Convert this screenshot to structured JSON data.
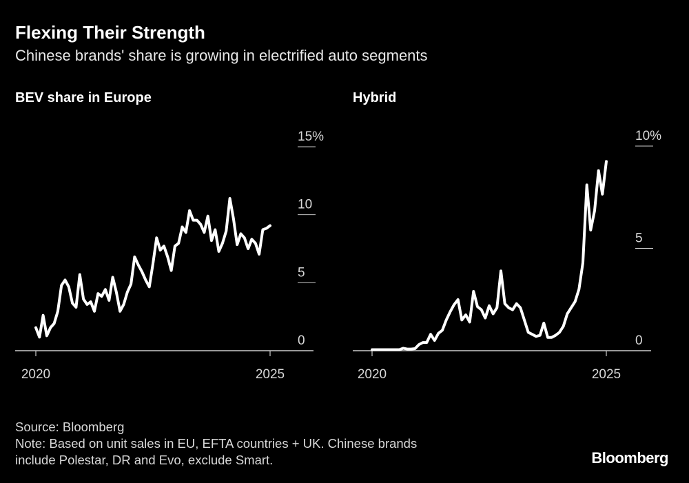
{
  "title": "Flexing Their Strength",
  "subtitle": "Chinese brands' share is growing in electrified auto segments",
  "footer": {
    "source": "Source: Bloomberg",
    "note_line1": "Note: Based on unit sales in EU, EFTA countries + UK. Chinese brands",
    "note_line2": "include Polestar, DR and Evo, exclude Smart."
  },
  "logo": "Bloomberg",
  "colors": {
    "background": "#000000",
    "line": "#ffffff",
    "axis": "#cccccc"
  },
  "chart_data": [
    {
      "type": "line",
      "title": "BEV share in Europe",
      "x_ticks": [
        "2020",
        "2025"
      ],
      "x_range": [
        2020,
        2025
      ],
      "y_ticks": [
        "0",
        "5",
        "10",
        "15%"
      ],
      "y_tick_values": [
        0,
        5,
        10,
        15
      ],
      "ylim": [
        0,
        15
      ],
      "grid": false,
      "values": [
        1.7,
        1.0,
        2.6,
        1.1,
        1.7,
        2.0,
        2.9,
        4.8,
        5.2,
        4.7,
        3.5,
        3.2,
        5.6,
        3.8,
        3.4,
        3.6,
        2.9,
        4.2,
        4.0,
        4.5,
        3.7,
        5.4,
        4.3,
        2.9,
        3.4,
        4.3,
        4.9,
        6.9,
        6.3,
        5.8,
        5.2,
        4.7,
        6.4,
        8.3,
        7.4,
        7.7,
        6.9,
        5.9,
        7.7,
        7.9,
        9.1,
        8.7,
        10.3,
        9.6,
        9.6,
        9.3,
        8.7,
        9.9,
        8.1,
        8.9,
        7.3,
        7.9,
        8.8,
        11.2,
        9.7,
        7.8,
        8.6,
        8.3,
        7.5,
        8.2,
        7.9,
        7.1,
        8.9,
        9.0,
        9.2
      ]
    },
    {
      "type": "line",
      "title": "Hybrid",
      "x_ticks": [
        "2020",
        "2025"
      ],
      "x_range": [
        2020,
        2025
      ],
      "y_ticks": [
        "0",
        "5",
        "10%"
      ],
      "y_tick_values": [
        0,
        5,
        10
      ],
      "ylim": [
        0,
        10
      ],
      "grid": false,
      "values": [
        0.05,
        0.05,
        0.05,
        0.05,
        0.05,
        0.05,
        0.05,
        0.05,
        0.12,
        0.08,
        0.08,
        0.1,
        0.3,
        0.4,
        0.4,
        0.8,
        0.5,
        0.85,
        1.0,
        1.5,
        1.9,
        2.25,
        2.5,
        1.5,
        1.75,
        1.4,
        2.9,
        2.15,
        2.0,
        1.6,
        2.2,
        1.8,
        2.1,
        3.9,
        2.3,
        2.1,
        2.0,
        2.3,
        2.1,
        1.5,
        0.9,
        0.8,
        0.7,
        0.75,
        1.35,
        0.65,
        0.65,
        0.75,
        0.9,
        1.2,
        1.8,
        2.1,
        2.4,
        3.0,
        4.3,
        8.1,
        5.9,
        6.85,
        8.8,
        7.65,
        9.25
      ]
    }
  ]
}
